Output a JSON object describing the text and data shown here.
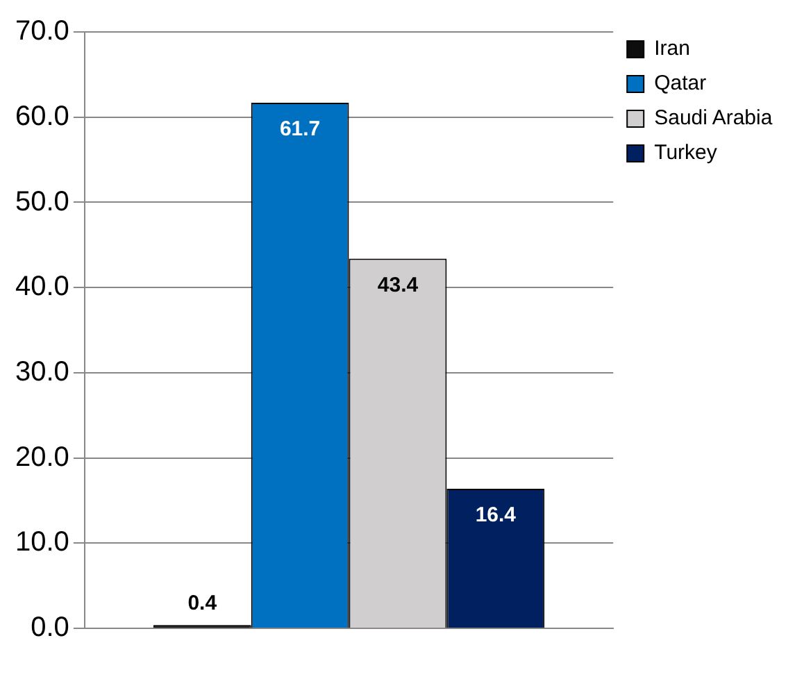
{
  "chart_data": {
    "type": "bar",
    "categories": [
      null
    ],
    "series": [
      {
        "name": "Iran",
        "color": "#0d0d0d",
        "values": [
          0.4
        ]
      },
      {
        "name": "Qatar",
        "color": "#0070c0",
        "values": [
          61.7
        ]
      },
      {
        "name": "Saudi Arabia",
        "color": "#d0cece",
        "values": [
          43.4
        ]
      },
      {
        "name": "Turkey",
        "color": "#002060",
        "values": [
          16.4
        ]
      }
    ],
    "ylim": [
      0,
      70
    ],
    "yticks": [
      {
        "value": 0,
        "label": "0.0"
      },
      {
        "value": 10,
        "label": "10.0"
      },
      {
        "value": 20,
        "label": "20.0"
      },
      {
        "value": 30,
        "label": "30.0"
      },
      {
        "value": 40,
        "label": "40.0"
      },
      {
        "value": 50,
        "label": "50.0"
      },
      {
        "value": 60,
        "label": "60.0"
      },
      {
        "value": 70,
        "label": "70.0"
      }
    ],
    "grid": "y",
    "legend": "top right",
    "data_labels": true
  }
}
